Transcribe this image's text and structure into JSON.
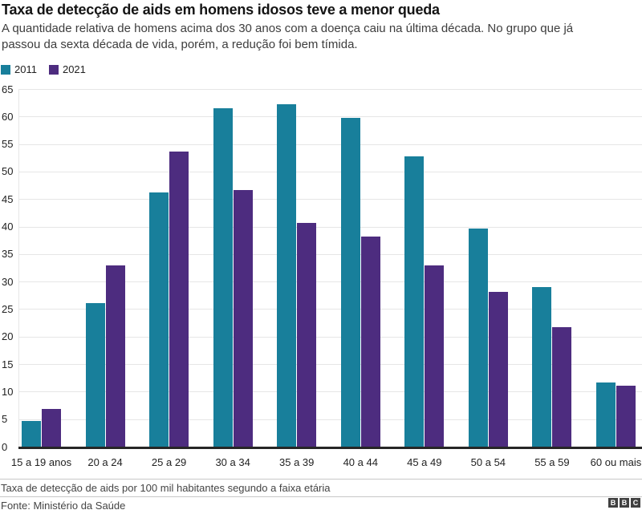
{
  "header": {
    "title": "Taxa de detecção de aids em homens idosos teve a menor queda",
    "subtitle": "A quantidade relativa de homens acima dos 30 anos com a doença caiu na última década. No grupo que já passou da sexta década de vida, porém, a redução foi bem tímida."
  },
  "chart_data": {
    "type": "bar",
    "title": "Taxa de detecção de aids em homens idosos teve a menor queda",
    "categories": [
      "15 a 19 anos",
      "20 a 24",
      "25 a 29",
      "30 a 34",
      "35 a 39",
      "40 a 44",
      "45 a 49",
      "50 a 54",
      "55 a 59",
      "60 ou mais"
    ],
    "series": [
      {
        "name": "2011",
        "color": "#187F9B",
        "values": [
          4.6,
          26.1,
          46.2,
          61.5,
          62.3,
          59.7,
          52.7,
          39.6,
          29.0,
          11.6
        ]
      },
      {
        "name": "2021",
        "color": "#4D2C7F",
        "values": [
          6.9,
          33.0,
          53.6,
          46.6,
          40.7,
          38.2,
          33.0,
          28.1,
          21.7,
          11.1
        ]
      }
    ],
    "xlabel": "",
    "ylabel": "",
    "ylim": [
      0,
      65
    ],
    "ytick_step": 5,
    "grid": true,
    "legend_position": "top-left",
    "axis_color": "#262626",
    "grid_color": "#e6e6e6"
  },
  "footer": {
    "note": "Taxa de detecção de aids por 100 mil habitantes segundo a faixa etária",
    "source": "Fonte: Ministério da Saúde",
    "logo_letters": [
      "B",
      "B",
      "C"
    ]
  }
}
